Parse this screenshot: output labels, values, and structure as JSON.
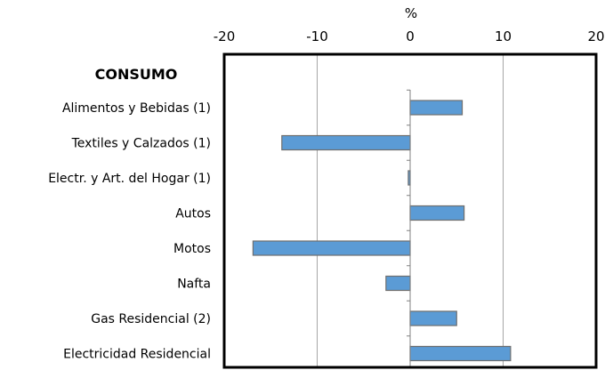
{
  "chart_data": {
    "type": "bar",
    "orientation": "horizontal",
    "unit_label": "%",
    "group_label": "CONSUMO",
    "categories": [
      "Alimentos y Bebidas (1)",
      "Textiles y Calzados (1)",
      "Electr. y Art. del Hogar (1)",
      "Autos",
      "Motos",
      "Nafta",
      "Gas Residencial (2)",
      "Electricidad Residencial"
    ],
    "values": [
      5.6,
      -13.8,
      -0.2,
      5.8,
      -16.9,
      -2.6,
      5.0,
      10.8
    ],
    "xlim": [
      -20,
      20
    ],
    "xticks": [
      -20,
      -10,
      0,
      10,
      20
    ],
    "xtick_labels": [
      "-20",
      "-10",
      "0",
      "10",
      "20"
    ],
    "axis_position": "top",
    "grid": true,
    "bar_color": "#5b9bd5"
  }
}
